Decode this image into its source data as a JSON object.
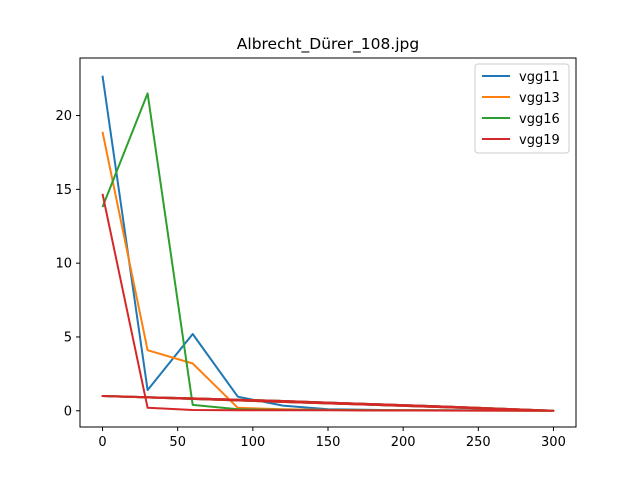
{
  "chart_data": {
    "type": "line",
    "title": "Albrecht_Dürer_108.jpg",
    "xlabel": "",
    "ylabel": "",
    "xlim": [
      -15,
      315
    ],
    "ylim": [
      -1.1,
      23.9
    ],
    "xticks": [
      0,
      50,
      100,
      150,
      200,
      250,
      300
    ],
    "yticks": [
      0,
      5,
      10,
      15,
      20
    ],
    "grid": false,
    "legend_position": "top-right",
    "series": [
      {
        "name": "vgg11",
        "color": "#1f77b4",
        "x": [
          0,
          30,
          60,
          90,
          120,
          150,
          180,
          210,
          240,
          270,
          300,
          0,
          30,
          60,
          90,
          120,
          150,
          180,
          210,
          240,
          270,
          300
        ],
        "y": [
          22.7,
          1.4,
          5.2,
          0.95,
          0.35,
          0.1,
          0.06,
          0.04,
          0.03,
          0.02,
          0.01,
          1.0,
          0.92,
          0.84,
          0.75,
          0.66,
          0.55,
          0.45,
          0.35,
          0.24,
          0.12,
          0.0
        ]
      },
      {
        "name": "vgg13",
        "color": "#ff7f0e",
        "x": [
          0,
          30,
          60,
          90,
          120,
          150,
          180,
          210,
          240,
          270,
          300,
          0,
          30,
          60,
          90,
          120,
          150,
          180,
          210,
          240,
          270,
          300
        ],
        "y": [
          18.9,
          4.1,
          3.2,
          0.2,
          0.1,
          0.06,
          0.04,
          0.03,
          0.02,
          0.01,
          0.0,
          1.0,
          0.92,
          0.84,
          0.75,
          0.66,
          0.55,
          0.45,
          0.35,
          0.24,
          0.12,
          0.0
        ]
      },
      {
        "name": "vgg16",
        "color": "#2ca02c",
        "x": [
          0,
          30,
          60,
          90,
          120,
          150,
          180,
          210,
          240,
          270,
          300,
          0,
          30,
          60,
          90,
          120,
          150,
          180,
          210,
          240,
          270,
          300
        ],
        "y": [
          13.8,
          21.5,
          0.4,
          0.1,
          0.06,
          0.05,
          0.04,
          0.03,
          0.02,
          0.01,
          0.0,
          1.0,
          0.92,
          0.84,
          0.75,
          0.66,
          0.55,
          0.45,
          0.35,
          0.24,
          0.12,
          0.0
        ]
      },
      {
        "name": "vgg19",
        "color": "#d62728",
        "x": [
          0,
          30,
          60,
          90,
          120,
          150,
          180,
          210,
          240,
          270,
          300,
          0,
          30,
          60,
          90,
          120,
          150,
          180,
          210,
          240,
          270,
          300
        ],
        "y": [
          14.7,
          0.2,
          0.05,
          0.04,
          0.03,
          0.03,
          0.02,
          0.02,
          0.01,
          0.01,
          0.0,
          1.0,
          0.92,
          0.84,
          0.75,
          0.66,
          0.55,
          0.45,
          0.35,
          0.24,
          0.12,
          0.0
        ]
      }
    ]
  }
}
